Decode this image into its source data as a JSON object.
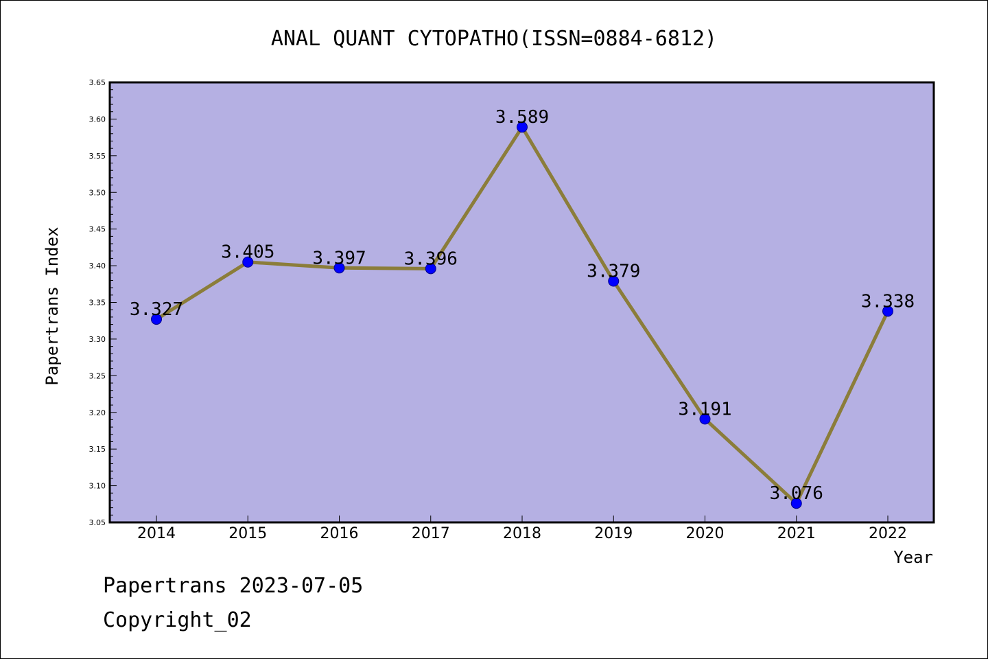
{
  "chart_data": {
    "type": "line",
    "title": "ANAL QUANT CYTOPATHO(ISSN=0884-6812)",
    "xlabel": "Year",
    "ylabel": "Papertrans Index",
    "categories": [
      "2014",
      "2015",
      "2016",
      "2017",
      "2018",
      "2019",
      "2020",
      "2021",
      "2022"
    ],
    "values": [
      3.327,
      3.405,
      3.397,
      3.396,
      3.589,
      3.379,
      3.191,
      3.076,
      3.338
    ],
    "data_labels": [
      "3.327",
      "3.405",
      "3.397",
      "3.396",
      "3.589",
      "3.379",
      "3.191",
      "3.076",
      "3.338"
    ],
    "ylim": [
      3.05,
      3.65
    ],
    "yticks": [
      "3.05",
      "3.10",
      "3.15",
      "3.20",
      "3.25",
      "3.30",
      "3.35",
      "3.40",
      "3.45",
      "3.50",
      "3.55",
      "3.60",
      "3.65"
    ],
    "grid": false,
    "legend": "none",
    "colors": {
      "plot_background": "#b5b0e3",
      "line": "#8b7d3a",
      "marker_fill": "#0000ff",
      "marker_edge": "#00008b"
    }
  },
  "footer": {
    "line1": "Papertrans 2023-07-05",
    "line2": "Copyright_02"
  }
}
